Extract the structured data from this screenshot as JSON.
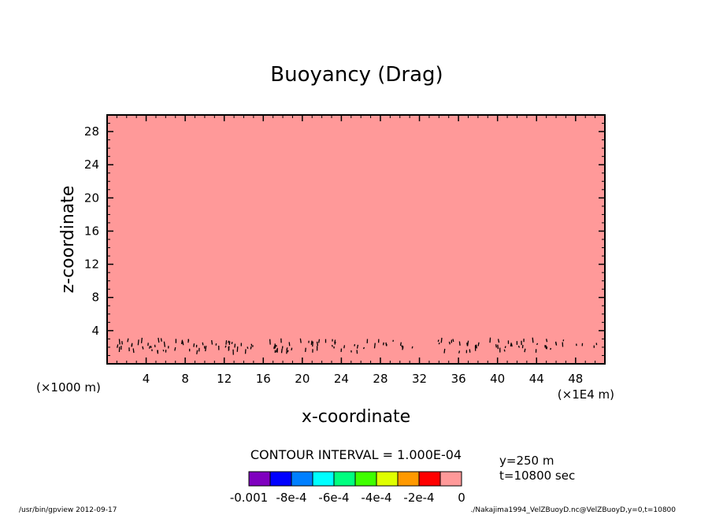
{
  "chart_data": {
    "type": "heatmap",
    "title": "Buoyancy (Drag)",
    "xlabel": "x-coordinate",
    "ylabel": "z-coordinate",
    "x_unit_left": "(×1000 m)",
    "x_unit_right": "(×1E4 m)",
    "xlim": [
      0,
      51
    ],
    "ylim": [
      0,
      30
    ],
    "x_ticks": [
      4,
      8,
      12,
      16,
      20,
      24,
      28,
      32,
      36,
      40,
      44,
      48
    ],
    "x_tick_labels": [
      "4",
      "8",
      "12",
      "16",
      "20",
      "24",
      "28",
      "32",
      "36",
      "40",
      "44",
      "48"
    ],
    "y_ticks": [
      4,
      8,
      12,
      16,
      20,
      24,
      28
    ],
    "y_tick_labels": [
      "4",
      "8",
      "12",
      "16",
      "20",
      "24",
      "28"
    ],
    "field_fill_color": "#ff9999",
    "contour_interval_text": "CONTOUR INTERVAL = 1.000E-04",
    "info_y": "y=250  m",
    "info_t": "t=10800  sec",
    "colorbar": {
      "colors": [
        "#7f00bf",
        "#0000ff",
        "#007fff",
        "#00ffff",
        "#00ff7f",
        "#3fff00",
        "#dfff00",
        "#ff9900",
        "#ff0000",
        "#ff9999"
      ],
      "labels": [
        "-0.001",
        "-8e-4",
        "-6e-4",
        "-4e-4",
        "-2e-4",
        "0"
      ]
    },
    "footer_left": "/usr/bin/gpview   2012-09-17",
    "footer_right": "./Nakajima1994_VelZBuoyD.nc@VelZBuoyD,y=0,t=10800"
  }
}
